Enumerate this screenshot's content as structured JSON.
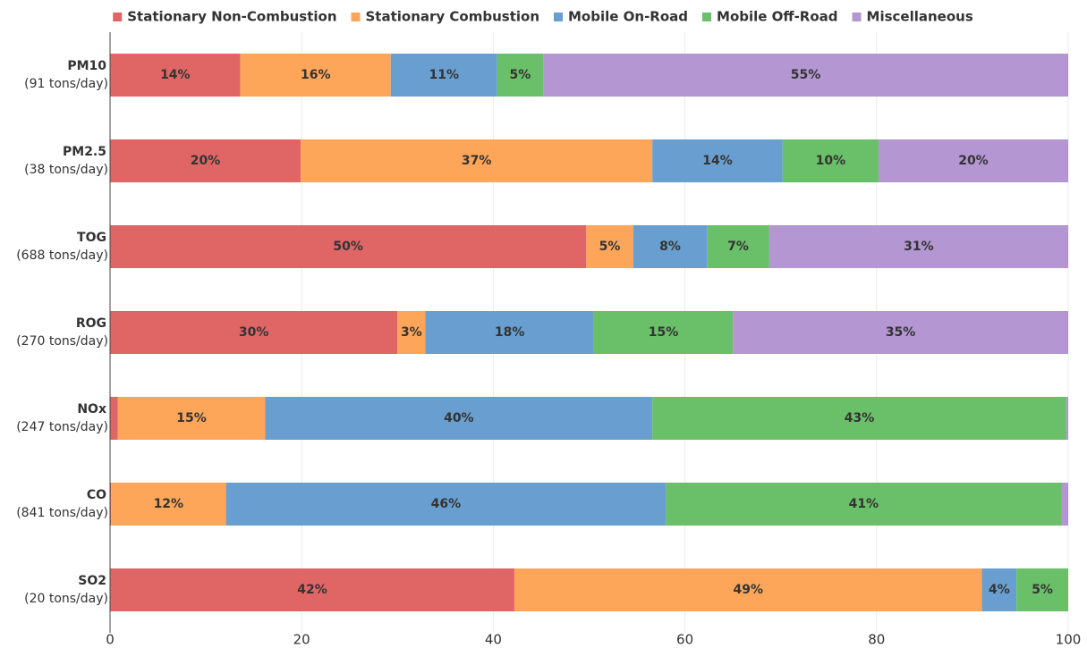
{
  "chart_data": {
    "type": "stacked-bar-horizontal",
    "categories": [
      "PM10",
      "PM2.5",
      "TOG",
      "ROG",
      "NOx",
      "CO",
      "SO2"
    ],
    "category_sublabels": [
      "(91 tons/day)",
      "(38 tons/day)",
      "(688 tons/day)",
      "(270 tons/day)",
      "(247 tons/day)",
      "(841 tons/day)",
      "(20 tons/day)"
    ],
    "series": [
      {
        "name": "Stationary Non-Combustion",
        "color": "#e06666",
        "values": [
          13.6,
          19.9,
          49.7,
          30.0,
          0.8,
          0.1,
          42.2
        ],
        "value_labels": [
          "14%",
          "20%",
          "50%",
          "30%",
          null,
          null,
          "42%"
        ]
      },
      {
        "name": "Stationary Combustion",
        "color": "#fda65a",
        "values": [
          15.7,
          36.7,
          4.9,
          2.9,
          15.4,
          12.0,
          48.8
        ],
        "value_labels": [
          "16%",
          "37%",
          "5%",
          "3%",
          "15%",
          "12%",
          "49%"
        ]
      },
      {
        "name": "Mobile On-Road",
        "color": "#689fd0",
        "values": [
          11.1,
          13.6,
          7.7,
          17.6,
          40.4,
          45.9,
          3.6
        ],
        "value_labels": [
          "11%",
          "14%",
          "8%",
          "18%",
          "40%",
          "46%",
          "4%"
        ]
      },
      {
        "name": "Mobile Off-Road",
        "color": "#6abf69",
        "values": [
          4.8,
          10.0,
          6.5,
          14.5,
          43.2,
          41.3,
          5.4
        ],
        "value_labels": [
          "5%",
          "10%",
          "7%",
          "15%",
          "43%",
          "41%",
          "5%"
        ]
      },
      {
        "name": "Miscellaneous",
        "color": "#b496d2",
        "values": [
          54.8,
          19.8,
          31.2,
          35.0,
          0.2,
          0.7,
          0.0
        ],
        "value_labels": [
          "55%",
          "20%",
          "31%",
          "35%",
          null,
          null,
          null
        ]
      }
    ],
    "xlim": [
      0,
      100
    ],
    "xticks": [
      0,
      20,
      40,
      60,
      80,
      100
    ],
    "grid": true,
    "legend": "top"
  }
}
